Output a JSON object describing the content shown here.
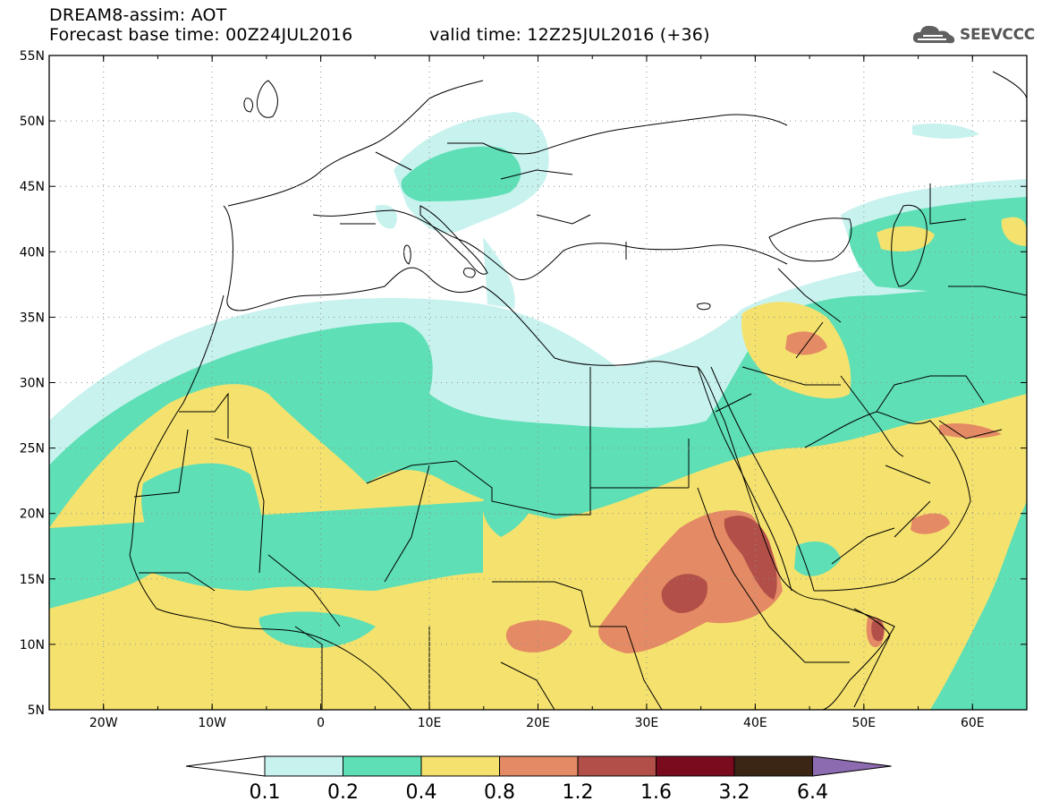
{
  "header": {
    "title": "DREAM8-assim: AOT",
    "base_time": "Forecast base time: 00Z24JUL2016",
    "valid_time": "valid time: 12Z25JUL2016 (+36)"
  },
  "logo": {
    "text": "SEEVCCC",
    "icon": "cloud-icon"
  },
  "map": {
    "lat_labels": [
      "55N",
      "50N",
      "45N",
      "40N",
      "35N",
      "30N",
      "25N",
      "20N",
      "15N",
      "10N",
      "5N"
    ],
    "lon_labels": [
      "20W",
      "10W",
      "0",
      "10E",
      "20E",
      "30E",
      "40E",
      "50E",
      "60E"
    ],
    "lon_range": [
      -25,
      65
    ],
    "lat_range": [
      5,
      55
    ]
  },
  "legend": {
    "thresholds": [
      "0.1",
      "0.2",
      "0.4",
      "0.8",
      "1.2",
      "1.6",
      "3.2",
      "6.4"
    ],
    "colors": [
      "#ffffff",
      "#c8f2ee",
      "#5edfb6",
      "#f5e26e",
      "#e48a64",
      "#b24f48",
      "#7a0a1d",
      "#3b2616",
      "#8d6bb0"
    ]
  }
}
